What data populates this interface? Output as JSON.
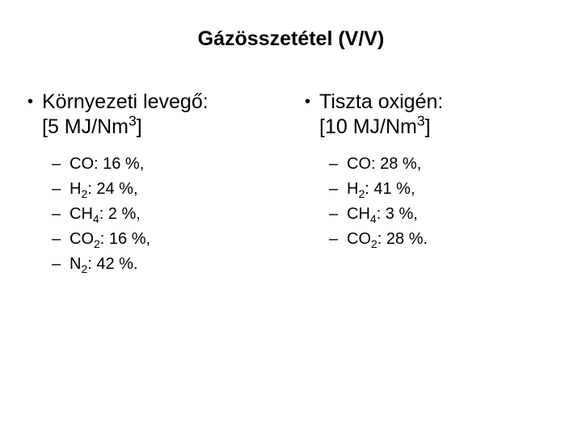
{
  "title": "Gázösszetétel (V/V)",
  "left": {
    "heading_line1": "Környezeti levegő:",
    "heading_line2_prefix": "[5 MJ/Nm",
    "heading_line2_sup": "3",
    "heading_line2_suffix": "]",
    "items": [
      {
        "label": "CO",
        "sub": "",
        "pct": ": 16 %,"
      },
      {
        "label": "H",
        "sub": "2",
        "pct": ": 24 %,"
      },
      {
        "label": "CH",
        "sub": "4",
        "pct": ": 2 %,"
      },
      {
        "label": "CO",
        "sub": "2",
        "pct": ": 16 %,"
      },
      {
        "label": "N",
        "sub": "2",
        "pct": ": 42 %."
      }
    ]
  },
  "right": {
    "heading_line1": "Tiszta oxigén:",
    "heading_line2_prefix": "[10 MJ/Nm",
    "heading_line2_sup": "3",
    "heading_line2_suffix": "]",
    "items": [
      {
        "label": "CO",
        "sub": "",
        "pct": ": 28 %,"
      },
      {
        "label": "H",
        "sub": "2",
        "pct": ": 41 %,"
      },
      {
        "label": "CH",
        "sub": "4",
        "pct": ": 3 %,"
      },
      {
        "label": "CO",
        "sub": "2",
        "pct": ": 28 %."
      }
    ]
  },
  "colors": {
    "background": "#ffffff",
    "text": "#000000"
  }
}
